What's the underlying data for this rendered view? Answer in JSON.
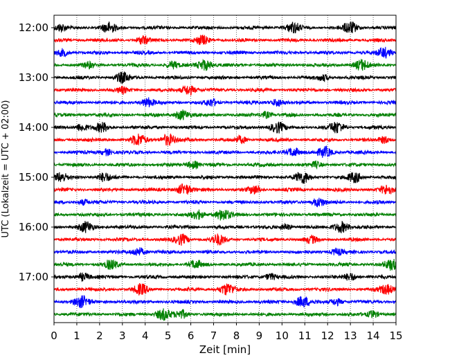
{
  "chart_data": {
    "type": "line",
    "title": "",
    "xlabel": "Zeit  [min]",
    "ylabel": "UTC (Lokalzeit = UTC + 02:00)",
    "xlim": [
      0,
      15
    ],
    "x_ticks": [
      0,
      1,
      2,
      3,
      4,
      5,
      6,
      7,
      8,
      9,
      10,
      11,
      12,
      13,
      14,
      15
    ],
    "x_tick_labels": [
      "0",
      "1",
      "2",
      "3",
      "4",
      "5",
      "6",
      "7",
      "8",
      "9",
      "10",
      "11",
      "12",
      "13",
      "14",
      "15"
    ],
    "y_tick_labels": [
      "12:00",
      "13:00",
      "14:00",
      "15:00",
      "16:00",
      "17:00"
    ],
    "grid": {
      "x": true,
      "style": "dotted"
    },
    "trace_colors": [
      "#000000",
      "#ff0000",
      "#0000ff",
      "#008000"
    ],
    "traces_per_hour": 4,
    "minutes_per_trace": 15,
    "traces": [
      {
        "start": "12:00",
        "color": "#000000",
        "bursts": [
          [
            0.3,
            0.6
          ],
          [
            2.4,
            0.9
          ],
          [
            10.5,
            0.9
          ],
          [
            13.0,
            1.0
          ]
        ]
      },
      {
        "start": "12:15",
        "color": "#ff0000",
        "bursts": [
          [
            3.9,
            0.7
          ],
          [
            6.5,
            0.8
          ]
        ]
      },
      {
        "start": "12:30",
        "color": "#0000ff",
        "bursts": [
          [
            0.4,
            0.6
          ],
          [
            14.5,
            0.9
          ]
        ]
      },
      {
        "start": "12:45",
        "color": "#008000",
        "bursts": [
          [
            1.5,
            0.5
          ],
          [
            5.2,
            0.6
          ],
          [
            6.6,
            1.0
          ],
          [
            13.5,
            0.9
          ]
        ]
      },
      {
        "start": "13:00",
        "color": "#000000",
        "bursts": [
          [
            3.0,
            0.9
          ],
          [
            11.8,
            0.5
          ]
        ]
      },
      {
        "start": "13:15",
        "color": "#ff0000",
        "bursts": [
          [
            3.0,
            0.5
          ],
          [
            5.9,
            0.9
          ]
        ]
      },
      {
        "start": "13:30",
        "color": "#0000ff",
        "bursts": [
          [
            4.1,
            0.8
          ],
          [
            6.9,
            0.6
          ],
          [
            9.8,
            0.7
          ]
        ]
      },
      {
        "start": "13:45",
        "color": "#008000",
        "bursts": [
          [
            5.6,
            0.9
          ],
          [
            9.3,
            0.6
          ]
        ]
      },
      {
        "start": "14:00",
        "color": "#000000",
        "bursts": [
          [
            1.2,
            0.7
          ],
          [
            2.1,
            0.8
          ],
          [
            9.8,
            0.9
          ],
          [
            12.4,
            1.0
          ]
        ]
      },
      {
        "start": "14:15",
        "color": "#ff0000",
        "bursts": [
          [
            3.7,
            1.0
          ],
          [
            5.0,
            1.0
          ],
          [
            8.2,
            0.6
          ],
          [
            14.5,
            0.6
          ]
        ]
      },
      {
        "start": "14:30",
        "color": "#0000ff",
        "bursts": [
          [
            2.3,
            0.6
          ],
          [
            10.5,
            0.8
          ],
          [
            11.9,
            0.9
          ]
        ]
      },
      {
        "start": "14:45",
        "color": "#008000",
        "bursts": [
          [
            6.1,
            0.7
          ],
          [
            11.5,
            0.5
          ]
        ]
      },
      {
        "start": "15:00",
        "color": "#000000",
        "bursts": [
          [
            0.3,
            0.8
          ],
          [
            2.2,
            0.8
          ],
          [
            10.9,
            1.0
          ],
          [
            13.2,
            0.9
          ]
        ]
      },
      {
        "start": "15:15",
        "color": "#ff0000",
        "bursts": [
          [
            5.7,
            1.0
          ],
          [
            8.8,
            0.7
          ],
          [
            14.6,
            0.8
          ]
        ]
      },
      {
        "start": "15:30",
        "color": "#0000ff",
        "bursts": [
          [
            1.3,
            0.5
          ],
          [
            11.6,
            0.8
          ]
        ]
      },
      {
        "start": "15:45",
        "color": "#008000",
        "bursts": [
          [
            6.3,
            0.8
          ],
          [
            7.4,
            1.0
          ]
        ]
      },
      {
        "start": "16:00",
        "color": "#000000",
        "bursts": [
          [
            1.4,
            0.9
          ],
          [
            10.2,
            0.5
          ],
          [
            12.6,
            1.0
          ]
        ]
      },
      {
        "start": "16:15",
        "color": "#ff0000",
        "bursts": [
          [
            5.6,
            0.9
          ],
          [
            7.2,
            0.9
          ],
          [
            11.3,
            0.6
          ]
        ]
      },
      {
        "start": "16:30",
        "color": "#0000ff",
        "bursts": [
          [
            3.7,
            0.8
          ],
          [
            12.4,
            0.6
          ]
        ]
      },
      {
        "start": "16:45",
        "color": "#008000",
        "bursts": [
          [
            2.5,
            0.8
          ],
          [
            6.2,
            0.7
          ],
          [
            14.8,
            0.9
          ]
        ]
      },
      {
        "start": "17:00",
        "color": "#000000",
        "bursts": [
          [
            1.3,
            0.7
          ],
          [
            9.5,
            0.6
          ],
          [
            13.0,
            0.7
          ]
        ]
      },
      {
        "start": "17:15",
        "color": "#ff0000",
        "bursts": [
          [
            3.8,
            0.9
          ],
          [
            7.6,
            1.0
          ],
          [
            14.6,
            0.9
          ]
        ]
      },
      {
        "start": "17:30",
        "color": "#0000ff",
        "bursts": [
          [
            1.2,
            1.0
          ],
          [
            10.9,
            1.0
          ],
          [
            12.4,
            0.6
          ]
        ]
      },
      {
        "start": "17:45",
        "color": "#008000",
        "bursts": [
          [
            4.8,
            1.0
          ],
          [
            5.6,
            0.7
          ],
          [
            14.0,
            0.6
          ]
        ]
      }
    ]
  }
}
